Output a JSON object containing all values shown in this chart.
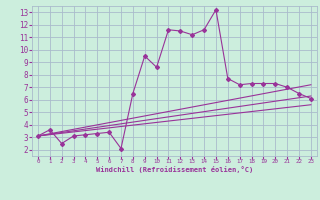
{
  "bg_color": "#cceedd",
  "grid_color": "#aabbcc",
  "line_color": "#993399",
  "xlabel": "Windchill (Refroidissement éolien,°C)",
  "xlim": [
    -0.5,
    23.5
  ],
  "ylim": [
    1.5,
    13.5
  ],
  "xticks": [
    0,
    1,
    2,
    3,
    4,
    5,
    6,
    7,
    8,
    9,
    10,
    11,
    12,
    13,
    14,
    15,
    16,
    17,
    18,
    19,
    20,
    21,
    22,
    23
  ],
  "yticks": [
    2,
    3,
    4,
    5,
    6,
    7,
    8,
    9,
    10,
    11,
    12,
    13
  ],
  "data_x": [
    0,
    1,
    2,
    3,
    4,
    5,
    6,
    7,
    8,
    9,
    10,
    11,
    12,
    13,
    14,
    15,
    16,
    17,
    18,
    19,
    20,
    21,
    22,
    23
  ],
  "data_y": [
    3.1,
    3.6,
    2.5,
    3.1,
    3.2,
    3.3,
    3.4,
    2.1,
    6.5,
    9.5,
    8.6,
    11.6,
    11.5,
    11.2,
    11.6,
    13.2,
    7.7,
    7.2,
    7.3,
    7.3,
    7.3,
    7.0,
    6.5,
    6.1
  ],
  "line1_x": [
    0,
    23
  ],
  "line1_y": [
    3.1,
    7.2
  ],
  "line2_x": [
    0,
    23
  ],
  "line2_y": [
    3.1,
    6.3
  ],
  "line3_x": [
    0,
    23
  ],
  "line3_y": [
    3.1,
    5.6
  ]
}
